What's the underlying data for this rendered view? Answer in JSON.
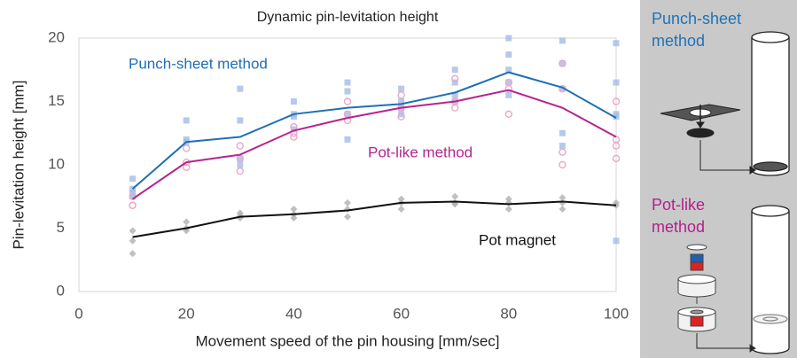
{
  "chart_data": {
    "type": "line",
    "title": "Dynamic pin-levitation height",
    "x_label": "Movement speed of the pin housing [mm/sec]",
    "y_label": "Pin-levitation height [mm]",
    "x": [
      10,
      20,
      30,
      40,
      50,
      60,
      70,
      80,
      90,
      100
    ],
    "xlim": [
      0,
      100
    ],
    "xticks": [
      0,
      20,
      40,
      60,
      80,
      100
    ],
    "ylim": [
      0,
      20
    ],
    "yticks": [
      0,
      5,
      10,
      15,
      20
    ],
    "grid": false,
    "series": [
      {
        "name": "Punch-sheet method",
        "color": "#1f6fb4",
        "marker": "square",
        "point_color": "#a3bde6",
        "values": [
          8.1,
          11.8,
          12.2,
          14.0,
          14.5,
          14.8,
          15.7,
          17.3,
          16.1,
          13.7
        ],
        "points": {
          "x": [
            10,
            10,
            10,
            10,
            20,
            20,
            20,
            30,
            30,
            30,
            30,
            40,
            40,
            40,
            40,
            50,
            50,
            50,
            50,
            60,
            60,
            60,
            60,
            70,
            70,
            70,
            70,
            80,
            80,
            80,
            80,
            80,
            90,
            90,
            90,
            90,
            90,
            100,
            100,
            100,
            100,
            100
          ],
          "values": [
            8.9,
            8.1,
            7.8,
            7.5,
            13.5,
            12.0,
            11.8,
            16.0,
            13.5,
            10.5,
            10.0,
            15.0,
            14.0,
            13.8,
            12.8,
            16.5,
            15.8,
            14.0,
            12.0,
            16.0,
            15.0,
            14.5,
            14.0,
            17.5,
            16.5,
            15.5,
            15.0,
            20.0,
            18.7,
            17.5,
            16.5,
            15.5,
            19.8,
            18.0,
            16.0,
            12.5,
            11.5,
            19.6,
            16.5,
            14.0,
            13.8,
            4.0
          ]
        }
      },
      {
        "name": "Pot-like method",
        "color": "#b5248f",
        "marker": "circle",
        "point_color": "#eda6c8",
        "values": [
          7.3,
          10.2,
          10.8,
          12.7,
          13.7,
          14.5,
          15.0,
          15.9,
          14.5,
          12.2
        ],
        "points": {
          "x": [
            10,
            10,
            10,
            20,
            20,
            20,
            30,
            30,
            30,
            40,
            40,
            40,
            50,
            50,
            50,
            60,
            60,
            60,
            70,
            70,
            70,
            80,
            80,
            80,
            90,
            90,
            90,
            90,
            100,
            100,
            100,
            100
          ],
          "values": [
            7.5,
            6.8,
            6.8,
            11.3,
            10.2,
            9.8,
            11.5,
            10.5,
            9.5,
            13.0,
            12.5,
            12.2,
            15.0,
            14.0,
            13.5,
            15.5,
            14.5,
            13.8,
            16.8,
            15.0,
            14.5,
            16.5,
            16.0,
            14.0,
            18.0,
            16.0,
            11.0,
            10.0,
            15.0,
            12.0,
            11.5,
            10.5
          ]
        }
      },
      {
        "name": "Pot magnet",
        "color": "#111111",
        "marker": "diamond",
        "point_color": "#b0b0b0",
        "values": [
          4.3,
          5.0,
          5.9,
          6.1,
          6.4,
          7.0,
          7.1,
          6.9,
          7.1,
          6.8
        ],
        "points": {
          "x": [
            10,
            10,
            10,
            20,
            20,
            20,
            30,
            30,
            30,
            40,
            40,
            40,
            50,
            50,
            50,
            60,
            60,
            60,
            70,
            70,
            70,
            80,
            80,
            80,
            90,
            90,
            90,
            100,
            100
          ],
          "values": [
            4.8,
            4.0,
            3.0,
            5.5,
            5.0,
            4.8,
            6.2,
            6.0,
            5.8,
            6.5,
            6.1,
            5.8,
            7.0,
            6.5,
            5.9,
            7.3,
            7.0,
            6.5,
            7.5,
            7.0,
            6.9,
            7.3,
            7.0,
            6.5,
            7.4,
            7.0,
            6.5,
            7.0,
            6.8
          ]
        }
      }
    ]
  },
  "panel": {
    "items": [
      {
        "label": [
          "Punch-sheet",
          "method"
        ]
      },
      {
        "label": [
          "Pot-like",
          "method"
        ]
      }
    ]
  }
}
